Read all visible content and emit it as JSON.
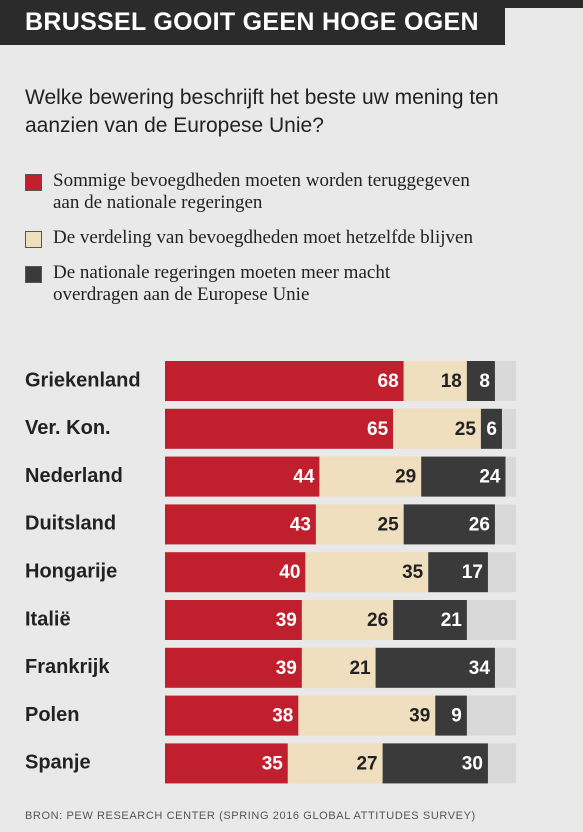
{
  "chart_data": {
    "type": "stacked-bar-horizontal",
    "title": "BRUSSEL GOOIT GEEN HOGE OGEN",
    "subtitle": "Welke bewering beschrijft het beste uw mening ten aanzien van de Europese Unie?",
    "categories": [
      "Griekenland",
      "Ver. Kon.",
      "Nederland",
      "Duitsland",
      "Hongarije",
      "Italië",
      "Frankrijk",
      "Polen",
      "Spanje"
    ],
    "series": [
      {
        "name": "Sommige bevoegdheden moeten worden teruggegeven aan de nationale regeringen",
        "color": "#c0202e",
        "values": [
          68,
          65,
          44,
          43,
          40,
          39,
          39,
          38,
          35
        ]
      },
      {
        "name": "De verdeling van bevoegdheden moet hetzelfde blijven",
        "color": "#efdfbe",
        "values": [
          18,
          25,
          29,
          25,
          35,
          26,
          21,
          39,
          27
        ]
      },
      {
        "name": "De nationale regeringen moeten meer macht overdragen aan de Europese Unie",
        "color": "#3a3a3a",
        "values": [
          8,
          6,
          24,
          26,
          17,
          21,
          34,
          9,
          30
        ]
      }
    ],
    "xlim": [
      0,
      100
    ],
    "source": "BRON: PEW RESEARCH CENTER (SPRING 2016 GLOBAL ATTITUDES SURVEY)"
  }
}
